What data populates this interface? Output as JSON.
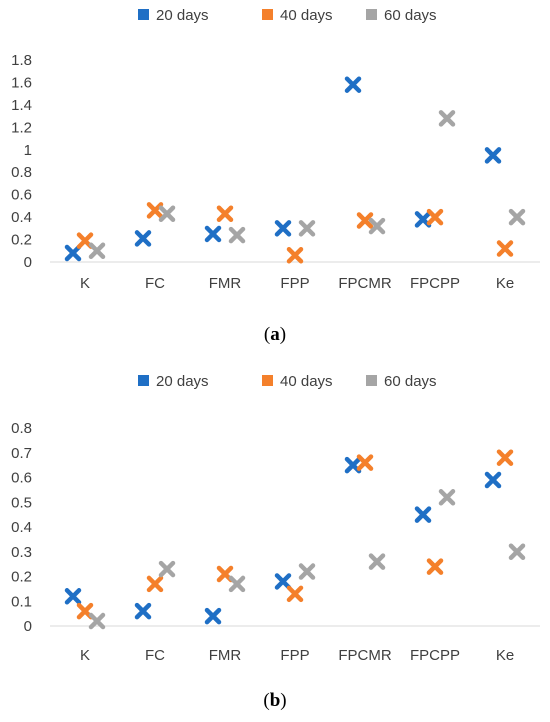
{
  "colors": {
    "20 days": "#1f6fc5",
    "40 days": "#f4802b",
    "60 days": "#a5a5a5",
    "axis": "#d9d9d9"
  },
  "chart_data": [
    {
      "type": "scatter",
      "caption_prefix": "(",
      "caption_letter": "a",
      "caption_suffix": ")",
      "categories": [
        "K",
        "FC",
        "FMR",
        "FPP",
        "FPCMR",
        "FPCPP",
        "Ke"
      ],
      "ylim": [
        0,
        1.8
      ],
      "yticks": [
        "0",
        "0.2",
        "0.4",
        "0.6",
        "0.8",
        "1",
        "1.2",
        "1.4",
        "1.6",
        "1.8"
      ],
      "grid": false,
      "legend_position": "top",
      "marker": "x",
      "series": [
        {
          "name": "20 days",
          "values": [
            0.08,
            0.21,
            0.25,
            0.3,
            1.58,
            0.38,
            0.95
          ]
        },
        {
          "name": "40 days",
          "values": [
            0.19,
            0.46,
            0.43,
            0.06,
            0.37,
            0.4,
            0.12
          ]
        },
        {
          "name": "60 days",
          "values": [
            0.1,
            0.43,
            0.24,
            0.3,
            0.32,
            1.28,
            0.4
          ]
        }
      ]
    },
    {
      "type": "scatter",
      "caption_prefix": "(",
      "caption_letter": "b",
      "caption_suffix": ")",
      "categories": [
        "K",
        "FC",
        "FMR",
        "FPP",
        "FPCMR",
        "FPCPP",
        "Ke"
      ],
      "ylim": [
        0,
        0.8
      ],
      "yticks": [
        "0",
        "0.1",
        "0.2",
        "0.3",
        "0.4",
        "0.5",
        "0.6",
        "0.7",
        "0.8"
      ],
      "grid": false,
      "legend_position": "top",
      "marker": "x",
      "series": [
        {
          "name": "20 days",
          "values": [
            0.12,
            0.06,
            0.04,
            0.18,
            0.65,
            0.45,
            0.59
          ]
        },
        {
          "name": "40 days",
          "values": [
            0.06,
            0.17,
            0.21,
            0.13,
            0.66,
            0.24,
            0.68
          ]
        },
        {
          "name": "60 days",
          "values": [
            0.02,
            0.23,
            0.17,
            0.22,
            0.26,
            0.52,
            0.3
          ]
        }
      ]
    }
  ]
}
